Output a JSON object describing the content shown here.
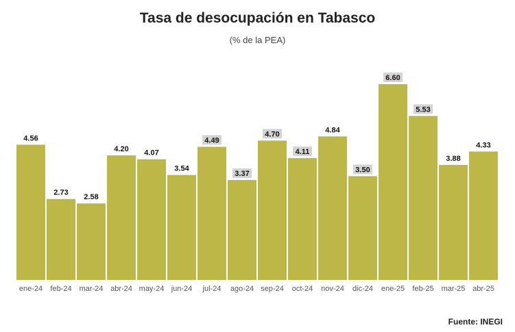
{
  "title": "Tasa de desocupación en Tabasco",
  "subtitle": "(% de la PEA)",
  "source": "Fuente: INEGI",
  "colors": {
    "bar": "#bcb746",
    "label_bg": "#d4d4d4",
    "label_text": "#111111",
    "tick_text": "#555555"
  },
  "chart_data": {
    "type": "bar",
    "title": "Tasa de desocupación en Tabasco",
    "subtitle": "(% de la PEA)",
    "xlabel": "",
    "ylabel": "",
    "ylim": [
      0,
      6.6
    ],
    "grid": false,
    "categories": [
      "ene-24",
      "feb-24",
      "mar-24",
      "abr-24",
      "may-24",
      "jun-24",
      "jul-24",
      "ago-24",
      "sep-24",
      "oct-24",
      "nov-24",
      "dic-24",
      "ene-25",
      "feb-25",
      "mar-25",
      "abr-25"
    ],
    "values": [
      4.56,
      2.73,
      2.58,
      4.2,
      4.07,
      3.54,
      4.49,
      3.37,
      4.7,
      4.11,
      4.84,
      3.5,
      6.6,
      5.53,
      3.88,
      4.33
    ],
    "labels": [
      "4.56",
      "2.73",
      "2.58",
      "4.20",
      "4.07",
      "3.54",
      "4.49",
      "3.37",
      "4.70",
      "4.11",
      "4.84",
      "3.50",
      "6.60",
      "5.53",
      "3.88",
      "4.33"
    ],
    "highlighted_labels": [
      6,
      7,
      8,
      9,
      11,
      12,
      13
    ]
  }
}
